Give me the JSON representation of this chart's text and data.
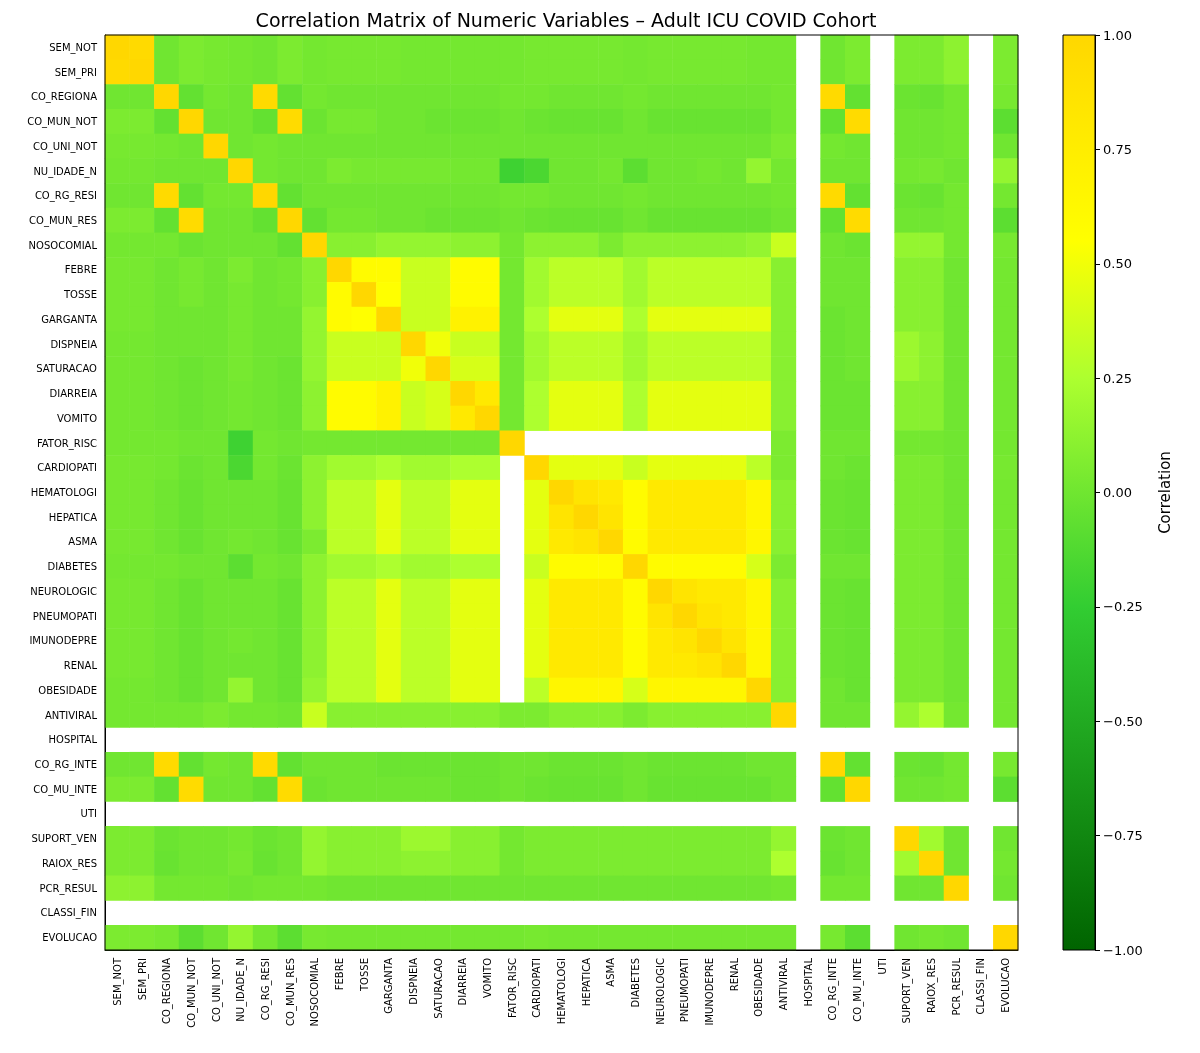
{
  "chart_data": {
    "type": "heatmap",
    "title": "Correlation Matrix of Numeric Variables – Adult ICU COVID Cohort",
    "clabel": "Correlation",
    "categories": [
      "SEM_NOT",
      "SEM_PRI",
      "CO_REGIONA",
      "CO_MUN_NOT",
      "CO_UNI_NOT",
      "NU_IDADE_N",
      "CO_RG_RESI",
      "CO_MUN_RES",
      "NOSOCOMIAL",
      "FEBRE",
      "TOSSE",
      "GARGANTA",
      "DISPNEIA",
      "SATURACAO",
      "DIARREIA",
      "VOMITO",
      "FATOR_RISC",
      "CARDIOPATI",
      "HEMATOLOGI",
      "HEPATICA",
      "ASMA",
      "DIABETES",
      "NEUROLOGIC",
      "PNEUMOPATI",
      "IMUNODEPRE",
      "RENAL",
      "OBESIDADE",
      "ANTIVIRAL",
      "HOSPITAL",
      "CO_RG_INTE",
      "CO_MU_INTE",
      "UTI",
      "SUPORT_VEN",
      "RAIOX_RES",
      "PCR_RESUL",
      "CLASSI_FIN",
      "EVOLUCAO"
    ],
    "y_categories": [
      "SEM_NOT",
      "SEM_PRI",
      "CO_REGIONA",
      "CO_MUN_NOT",
      "CO_UNI_NOT",
      "NU_IDADE_N",
      "CO_RG_RESI",
      "CO_MUN_RES",
      "NOSOCOMIAL",
      "FEBRE",
      "TOSSE",
      "GARGANTA",
      "DISPNEIA",
      "SATURACAO",
      "DIARREIA",
      "VOMITO",
      "FATOR_RISC",
      "CARDIOPATI",
      "HEMATOLOGI",
      "HEPATICA",
      "ASMA",
      "DIABETES",
      "NEUROLOGIC",
      "PNEUMOPATI",
      "IMUNODEPRE",
      "RENAL",
      "OBESIDADE",
      "ANTIVIRAL",
      "HOSPITAL",
      "CO_RG_INTE",
      "CO_MU_INTE",
      "UTI",
      "SUPORT_VEN",
      "RAIOX_RES",
      "PCR_RESUL",
      "CLASSI_FIN",
      "EVOLUCAO"
    ],
    "cells": [
      [
        1,
        0.97,
        0.0,
        0.05,
        0.03,
        0.02,
        0.0,
        0.05,
        0.02,
        0.03,
        0.03,
        0.03,
        0.02,
        0.02,
        0.02,
        0.02,
        0.02,
        0.03,
        0.03,
        0.03,
        0.03,
        0.02,
        0.03,
        0.03,
        0.03,
        0.03,
        0.02,
        0.02,
        null,
        0.0,
        0.05,
        null,
        0.05,
        0.05,
        0.12,
        null,
        0.05
      ],
      [
        0.97,
        1,
        0.0,
        0.05,
        0.03,
        0.02,
        0.0,
        0.05,
        0.02,
        0.03,
        0.03,
        0.03,
        0.02,
        0.02,
        0.02,
        0.02,
        0.02,
        0.03,
        0.03,
        0.03,
        0.03,
        0.02,
        0.03,
        0.03,
        0.03,
        0.03,
        0.02,
        0.02,
        null,
        0.0,
        0.05,
        null,
        0.05,
        0.05,
        0.12,
        null,
        0.05
      ],
      [
        0.0,
        0.0,
        1,
        -0.05,
        0.02,
        0.0,
        0.97,
        -0.05,
        0.02,
        0.0,
        0.0,
        0.0,
        0.0,
        0.0,
        0.0,
        0.0,
        0.02,
        0.02,
        0.0,
        0.0,
        0.0,
        0.02,
        0.0,
        0.0,
        0.0,
        0.0,
        0.0,
        0.02,
        null,
        0.97,
        -0.05,
        null,
        -0.02,
        -0.03,
        0.02,
        null,
        0.03
      ],
      [
        0.05,
        0.05,
        -0.05,
        1,
        0.0,
        0.0,
        -0.05,
        0.96,
        -0.02,
        0.03,
        0.03,
        0.0,
        0.0,
        -0.02,
        -0.02,
        -0.02,
        0.0,
        -0.02,
        -0.03,
        -0.03,
        -0.03,
        0.0,
        -0.03,
        -0.03,
        -0.03,
        -0.03,
        -0.03,
        0.02,
        null,
        -0.05,
        0.96,
        null,
        0.0,
        0.0,
        0.02,
        null,
        -0.08
      ],
      [
        0.03,
        0.03,
        0.02,
        0.0,
        1,
        0.0,
        0.02,
        0.0,
        0.0,
        0.0,
        0.0,
        0.0,
        0.0,
        0.0,
        0.0,
        0.0,
        0.0,
        0.0,
        0.0,
        0.0,
        0.0,
        0.0,
        0.0,
        0.0,
        0.0,
        0.0,
        0.0,
        0.05,
        null,
        0.02,
        0.0,
        null,
        0.0,
        0.0,
        0.02,
        null,
        0.0
      ],
      [
        0.02,
        0.02,
        0.0,
        0.0,
        0.0,
        1,
        0.02,
        0.0,
        0.0,
        0.05,
        0.03,
        0.03,
        0.03,
        0.03,
        0.02,
        0.02,
        -0.2,
        -0.15,
        0.0,
        0.0,
        0.02,
        -0.08,
        0.0,
        0.0,
        0.02,
        0.0,
        0.15,
        0.02,
        null,
        0.0,
        0.0,
        null,
        0.02,
        0.03,
        0.0,
        null,
        0.15
      ],
      [
        0.0,
        0.0,
        0.97,
        -0.05,
        0.02,
        0.02,
        1,
        -0.05,
        0.0,
        0.0,
        0.0,
        0.0,
        0.0,
        0.0,
        0.0,
        0.0,
        0.02,
        0.02,
        0.0,
        0.0,
        0.0,
        0.02,
        0.0,
        0.0,
        0.0,
        0.0,
        0.0,
        0.02,
        null,
        0.97,
        -0.05,
        null,
        -0.02,
        -0.03,
        0.02,
        null,
        0.02
      ],
      [
        0.05,
        0.05,
        -0.05,
        0.96,
        0.0,
        0.0,
        -0.05,
        1,
        -0.05,
        0.02,
        0.02,
        0.0,
        0.0,
        -0.02,
        -0.02,
        -0.02,
        0.0,
        -0.02,
        -0.03,
        -0.03,
        -0.03,
        0.0,
        -0.03,
        -0.03,
        -0.03,
        -0.03,
        -0.03,
        0.0,
        null,
        -0.05,
        0.96,
        null,
        0.0,
        0.0,
        0.02,
        null,
        -0.08
      ],
      [
        0.02,
        0.02,
        0.02,
        -0.02,
        0.0,
        0.0,
        0.0,
        -0.05,
        1,
        0.1,
        0.1,
        0.15,
        0.15,
        0.15,
        0.12,
        0.12,
        0.02,
        0.12,
        0.12,
        0.12,
        0.05,
        0.12,
        0.12,
        0.12,
        0.12,
        0.12,
        0.15,
        0.35,
        null,
        0.0,
        -0.02,
        null,
        0.15,
        0.15,
        0.02,
        null,
        0.03
      ],
      [
        0.03,
        0.03,
        0.0,
        0.03,
        0.0,
        0.05,
        0.0,
        0.02,
        0.1,
        1,
        0.6,
        0.6,
        0.35,
        0.35,
        0.6,
        0.6,
        0.02,
        0.2,
        0.3,
        0.3,
        0.3,
        0.2,
        0.3,
        0.3,
        0.3,
        0.3,
        0.3,
        0.1,
        null,
        0.0,
        0.0,
        null,
        0.1,
        0.1,
        0.0,
        null,
        0.02
      ],
      [
        0.03,
        0.03,
        0.0,
        0.03,
        0.0,
        0.03,
        0.0,
        0.02,
        0.1,
        0.6,
        1,
        0.55,
        0.35,
        0.35,
        0.6,
        0.6,
        0.02,
        0.2,
        0.3,
        0.3,
        0.3,
        0.2,
        0.3,
        0.3,
        0.3,
        0.3,
        0.3,
        0.1,
        null,
        0.0,
        0.0,
        null,
        0.1,
        0.1,
        0.0,
        null,
        0.02
      ],
      [
        0.03,
        0.03,
        0.0,
        0.0,
        0.0,
        0.03,
        0.0,
        0.0,
        0.15,
        0.6,
        0.55,
        1,
        0.35,
        0.35,
        0.7,
        0.7,
        0.02,
        0.25,
        0.45,
        0.45,
        0.45,
        0.25,
        0.45,
        0.45,
        0.45,
        0.45,
        0.45,
        0.1,
        null,
        -0.02,
        0.0,
        null,
        0.1,
        0.1,
        0.0,
        null,
        0.02
      ],
      [
        0.02,
        0.02,
        0.0,
        0.0,
        0.0,
        0.03,
        0.0,
        0.0,
        0.15,
        0.35,
        0.35,
        0.35,
        1,
        0.5,
        0.35,
        0.35,
        0.02,
        0.2,
        0.3,
        0.3,
        0.3,
        0.2,
        0.3,
        0.3,
        0.3,
        0.3,
        0.3,
        0.1,
        null,
        -0.02,
        0.0,
        null,
        0.18,
        0.12,
        0.0,
        null,
        0.02
      ],
      [
        0.02,
        0.02,
        0.0,
        -0.02,
        0.0,
        0.03,
        0.0,
        -0.02,
        0.15,
        0.35,
        0.35,
        0.35,
        0.5,
        1,
        0.4,
        0.4,
        0.02,
        0.2,
        0.3,
        0.3,
        0.3,
        0.2,
        0.3,
        0.3,
        0.3,
        0.3,
        0.3,
        0.1,
        null,
        -0.02,
        0.0,
        null,
        0.18,
        0.12,
        0.0,
        null,
        0.02
      ],
      [
        0.02,
        0.02,
        0.0,
        -0.02,
        0.0,
        0.02,
        0.0,
        -0.02,
        0.12,
        0.6,
        0.6,
        0.7,
        0.35,
        0.4,
        1,
        0.8,
        0.02,
        0.25,
        0.45,
        0.45,
        0.45,
        0.25,
        0.45,
        0.45,
        0.45,
        0.45,
        0.45,
        0.1,
        null,
        -0.02,
        -0.02,
        null,
        0.1,
        0.1,
        0.0,
        null,
        0.02
      ],
      [
        0.02,
        0.02,
        0.0,
        -0.02,
        0.0,
        0.02,
        0.0,
        -0.02,
        0.12,
        0.6,
        0.6,
        0.7,
        0.35,
        0.4,
        0.8,
        1,
        0.02,
        0.25,
        0.45,
        0.45,
        0.45,
        0.25,
        0.45,
        0.45,
        0.45,
        0.45,
        0.45,
        0.1,
        null,
        -0.02,
        -0.02,
        null,
        0.1,
        0.1,
        0.0,
        null,
        0.02
      ],
      [
        0.02,
        0.02,
        0.02,
        0.0,
        0.0,
        -0.2,
        0.02,
        0.0,
        0.02,
        0.02,
        0.02,
        0.02,
        0.02,
        0.02,
        0.02,
        0.02,
        1,
        null,
        null,
        null,
        null,
        null,
        null,
        null,
        null,
        null,
        null,
        0.05,
        null,
        0.0,
        0.0,
        null,
        0.02,
        0.02,
        0.0,
        null,
        0.02
      ],
      [
        0.03,
        0.03,
        0.02,
        -0.02,
        0.0,
        -0.15,
        0.02,
        -0.02,
        0.12,
        0.2,
        0.2,
        0.25,
        0.2,
        0.2,
        0.25,
        0.25,
        null,
        1,
        0.45,
        0.45,
        0.45,
        0.35,
        0.45,
        0.45,
        0.45,
        0.45,
        0.3,
        0.05,
        null,
        0.0,
        -0.02,
        null,
        0.05,
        0.05,
        0.0,
        null,
        0.03
      ],
      [
        0.03,
        0.03,
        0.0,
        -0.03,
        0.0,
        0.0,
        0.0,
        -0.03,
        0.12,
        0.3,
        0.3,
        0.45,
        0.3,
        0.3,
        0.45,
        0.45,
        null,
        0.45,
        1,
        0.85,
        0.8,
        0.6,
        0.8,
        0.8,
        0.8,
        0.8,
        0.65,
        0.1,
        null,
        -0.02,
        -0.03,
        null,
        0.05,
        0.05,
        0.0,
        null,
        0.02
      ],
      [
        0.03,
        0.03,
        0.0,
        -0.03,
        0.0,
        0.0,
        0.0,
        -0.03,
        0.12,
        0.3,
        0.3,
        0.45,
        0.3,
        0.3,
        0.45,
        0.45,
        null,
        0.45,
        0.85,
        1,
        0.85,
        0.6,
        0.8,
        0.8,
        0.8,
        0.8,
        0.65,
        0.1,
        null,
        -0.02,
        -0.03,
        null,
        0.05,
        0.05,
        0.0,
        null,
        0.02
      ],
      [
        0.03,
        0.03,
        0.0,
        -0.03,
        0.0,
        0.02,
        0.0,
        -0.03,
        0.05,
        0.3,
        0.3,
        0.45,
        0.3,
        0.3,
        0.45,
        0.45,
        null,
        0.45,
        0.8,
        0.85,
        1,
        0.6,
        0.8,
        0.8,
        0.8,
        0.8,
        0.65,
        0.1,
        null,
        -0.02,
        -0.03,
        null,
        0.05,
        0.05,
        0.0,
        null,
        0.02
      ],
      [
        0.02,
        0.02,
        0.02,
        0.0,
        0.0,
        -0.08,
        0.02,
        0.0,
        0.12,
        0.2,
        0.2,
        0.25,
        0.2,
        0.2,
        0.25,
        0.25,
        null,
        0.35,
        0.6,
        0.6,
        0.6,
        1,
        0.6,
        0.6,
        0.6,
        0.6,
        0.4,
        0.05,
        null,
        0.0,
        0.0,
        null,
        0.05,
        0.05,
        0.0,
        null,
        0.02
      ],
      [
        0.03,
        0.03,
        0.0,
        -0.03,
        0.0,
        0.0,
        0.0,
        -0.03,
        0.12,
        0.3,
        0.3,
        0.45,
        0.3,
        0.3,
        0.45,
        0.45,
        null,
        0.45,
        0.8,
        0.8,
        0.8,
        0.6,
        1,
        0.85,
        0.8,
        0.8,
        0.65,
        0.1,
        null,
        -0.02,
        -0.03,
        null,
        0.05,
        0.05,
        0.0,
        null,
        0.02
      ],
      [
        0.03,
        0.03,
        0.0,
        -0.03,
        0.0,
        0.0,
        0.0,
        -0.03,
        0.12,
        0.3,
        0.3,
        0.45,
        0.3,
        0.3,
        0.45,
        0.45,
        null,
        0.45,
        0.8,
        0.8,
        0.8,
        0.6,
        0.85,
        1,
        0.85,
        0.8,
        0.65,
        0.1,
        null,
        -0.02,
        -0.03,
        null,
        0.05,
        0.05,
        0.0,
        null,
        0.02
      ],
      [
        0.03,
        0.03,
        0.0,
        -0.03,
        0.0,
        0.02,
        0.0,
        -0.03,
        0.12,
        0.3,
        0.3,
        0.45,
        0.3,
        0.3,
        0.45,
        0.45,
        null,
        0.45,
        0.8,
        0.8,
        0.8,
        0.6,
        0.8,
        0.85,
        1,
        0.85,
        0.65,
        0.1,
        null,
        -0.02,
        -0.03,
        null,
        0.05,
        0.05,
        0.0,
        null,
        0.02
      ],
      [
        0.03,
        0.03,
        0.0,
        -0.03,
        0.0,
        0.0,
        0.0,
        -0.03,
        0.12,
        0.3,
        0.3,
        0.45,
        0.3,
        0.3,
        0.45,
        0.45,
        null,
        0.45,
        0.8,
        0.8,
        0.8,
        0.6,
        0.8,
        0.8,
        0.85,
        1,
        0.65,
        0.1,
        null,
        -0.02,
        -0.03,
        null,
        0.05,
        0.05,
        0.0,
        null,
        0.02
      ],
      [
        0.02,
        0.02,
        0.0,
        -0.03,
        0.0,
        0.15,
        0.0,
        -0.03,
        0.15,
        0.3,
        0.3,
        0.45,
        0.3,
        0.3,
        0.45,
        0.45,
        null,
        0.3,
        0.65,
        0.65,
        0.65,
        0.4,
        0.65,
        0.65,
        0.65,
        0.65,
        1,
        0.1,
        null,
        0.0,
        -0.03,
        null,
        0.05,
        0.05,
        0.0,
        null,
        0.02
      ],
      [
        0.02,
        0.02,
        0.02,
        0.02,
        0.05,
        0.02,
        0.02,
        0.0,
        0.35,
        0.1,
        0.1,
        0.1,
        0.1,
        0.1,
        0.1,
        0.1,
        0.05,
        0.05,
        0.1,
        0.1,
        0.1,
        0.05,
        0.1,
        0.1,
        0.1,
        0.1,
        0.1,
        1,
        null,
        0.0,
        0.0,
        null,
        0.15,
        0.25,
        0.02,
        null,
        0.02
      ],
      [
        null,
        null,
        null,
        null,
        null,
        null,
        null,
        null,
        null,
        null,
        null,
        null,
        null,
        null,
        null,
        null,
        null,
        null,
        null,
        null,
        null,
        null,
        null,
        null,
        null,
        null,
        null,
        null,
        null,
        null,
        null,
        null,
        null,
        null,
        null,
        null,
        null
      ],
      [
        0.0,
        0.0,
        0.97,
        -0.05,
        0.02,
        0.0,
        0.97,
        -0.05,
        0.0,
        0.0,
        0.0,
        -0.02,
        -0.02,
        -0.02,
        -0.02,
        -0.02,
        0.0,
        0.0,
        -0.02,
        -0.02,
        -0.02,
        0.0,
        -0.02,
        -0.02,
        -0.02,
        -0.02,
        0.0,
        0.0,
        null,
        1,
        -0.05,
        null,
        -0.02,
        -0.03,
        0.02,
        null,
        0.03
      ],
      [
        0.05,
        0.05,
        -0.05,
        0.96,
        0.0,
        0.0,
        -0.05,
        0.96,
        -0.02,
        0.0,
        0.0,
        0.0,
        0.0,
        0.0,
        -0.02,
        -0.02,
        0.0,
        -0.02,
        -0.03,
        -0.03,
        -0.03,
        0.0,
        -0.03,
        -0.03,
        -0.03,
        -0.03,
        -0.03,
        0.0,
        null,
        -0.05,
        1,
        null,
        0.0,
        0.0,
        0.02,
        null,
        -0.08
      ],
      [
        null,
        null,
        null,
        null,
        null,
        null,
        null,
        null,
        null,
        null,
        null,
        null,
        null,
        null,
        null,
        null,
        null,
        null,
        null,
        null,
        null,
        null,
        null,
        null,
        null,
        null,
        null,
        null,
        null,
        null,
        null,
        null,
        null,
        null,
        null,
        null,
        null
      ],
      [
        0.05,
        0.05,
        -0.02,
        0.0,
        0.0,
        0.02,
        -0.02,
        0.0,
        0.15,
        0.1,
        0.1,
        0.1,
        0.18,
        0.18,
        0.1,
        0.1,
        0.02,
        0.05,
        0.05,
        0.05,
        0.05,
        0.05,
        0.05,
        0.05,
        0.05,
        0.05,
        0.05,
        0.15,
        null,
        -0.02,
        0.0,
        null,
        1,
        0.2,
        0.0,
        null,
        0.0
      ],
      [
        0.05,
        0.05,
        -0.03,
        0.0,
        0.0,
        0.03,
        -0.03,
        0.0,
        0.15,
        0.1,
        0.1,
        0.1,
        0.12,
        0.12,
        0.1,
        0.1,
        0.02,
        0.05,
        0.05,
        0.05,
        0.05,
        0.05,
        0.05,
        0.05,
        0.05,
        0.05,
        0.05,
        0.25,
        null,
        -0.03,
        0.0,
        null,
        0.2,
        1,
        0.0,
        null,
        0.02
      ],
      [
        0.12,
        0.12,
        0.02,
        0.02,
        0.02,
        0.0,
        0.02,
        0.02,
        0.02,
        0.0,
        0.0,
        0.0,
        0.0,
        0.0,
        0.0,
        0.0,
        0.0,
        0.0,
        0.0,
        0.0,
        0.0,
        0.0,
        0.0,
        0.0,
        0.0,
        0.0,
        0.0,
        0.02,
        null,
        0.02,
        0.02,
        null,
        0.0,
        0.0,
        1,
        null,
        0.0
      ],
      [
        null,
        null,
        null,
        null,
        null,
        null,
        null,
        null,
        null,
        null,
        null,
        null,
        null,
        null,
        null,
        null,
        null,
        null,
        null,
        null,
        null,
        null,
        null,
        null,
        null,
        null,
        null,
        null,
        null,
        null,
        null,
        null,
        null,
        null,
        null,
        null,
        null
      ],
      [
        0.05,
        0.05,
        0.03,
        -0.08,
        0.0,
        0.15,
        0.02,
        -0.08,
        0.03,
        0.02,
        0.02,
        0.02,
        0.02,
        0.02,
        0.02,
        0.02,
        0.02,
        0.03,
        0.02,
        0.02,
        0.02,
        0.02,
        0.02,
        0.02,
        0.02,
        0.02,
        0.02,
        0.02,
        null,
        0.03,
        -0.08,
        null,
        0.0,
        0.02,
        0.0,
        null,
        1
      ]
    ],
    "clim": [
      -1,
      1
    ],
    "cticks": [
      {
        "value": -1,
        "label": "−1.00"
      },
      {
        "value": -0.75,
        "label": "−0.75"
      },
      {
        "value": -0.5,
        "label": "−0.50"
      },
      {
        "value": -0.25,
        "label": "−0.25"
      },
      {
        "value": 0,
        "label": "0.00"
      },
      {
        "value": 0.25,
        "label": "0.25"
      },
      {
        "value": 0.5,
        "label": "0.50"
      },
      {
        "value": 0.75,
        "label": "0.75"
      },
      {
        "value": 1,
        "label": "1.00"
      }
    ]
  }
}
